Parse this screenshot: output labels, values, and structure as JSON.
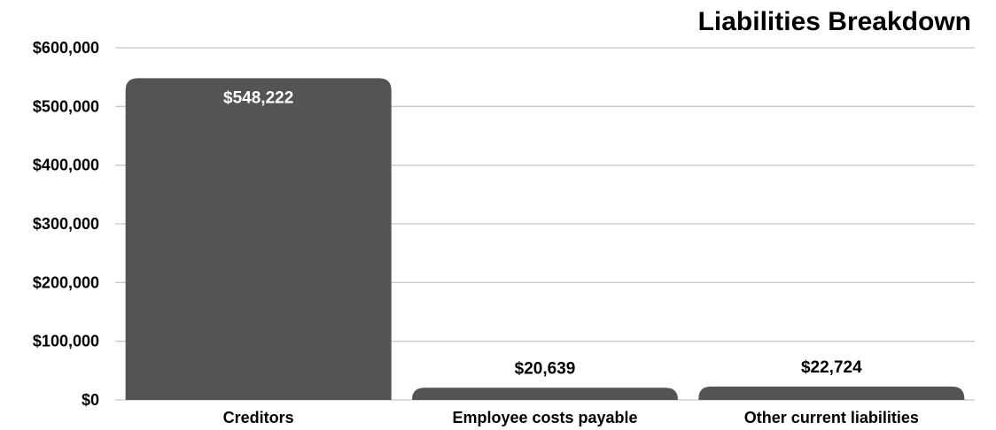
{
  "chart_data": {
    "type": "bar",
    "title": "Liabilities Breakdown",
    "categories": [
      "Creditors",
      "Employee costs payable",
      "Other current liabilities"
    ],
    "values": [
      548222,
      20639,
      22724
    ],
    "value_labels": [
      "$548,222",
      "$20,639",
      "$22,724"
    ],
    "yticks": [
      0,
      100000,
      200000,
      300000,
      400000,
      500000,
      600000
    ],
    "ytick_labels": [
      "$0",
      "$100,000",
      "$200,000",
      "$300,000",
      "$400,000",
      "$500,000",
      "$600,000"
    ],
    "ylim": [
      0,
      600000
    ],
    "grid": true,
    "legend": "none",
    "bar_color": "#545454",
    "grid_color": "#c8c8c8",
    "label_inside_color": "#ffffff",
    "label_outside_color": "#000000"
  }
}
